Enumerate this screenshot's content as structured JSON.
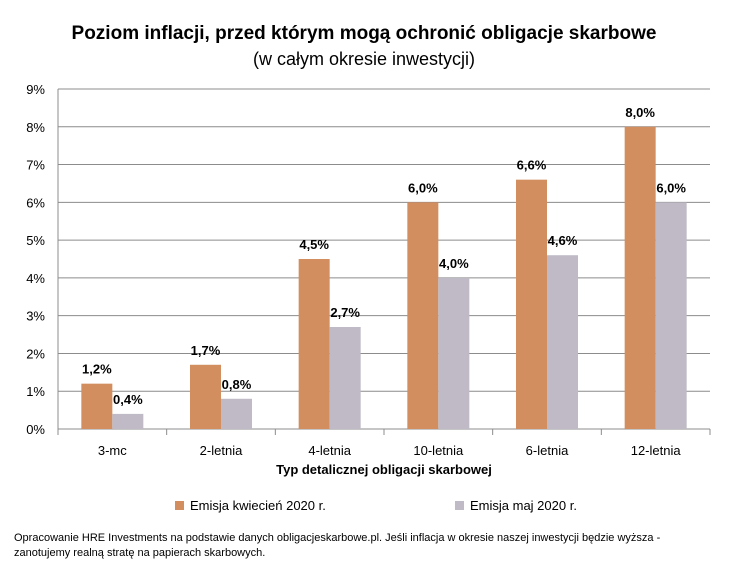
{
  "chart_data": {
    "type": "bar",
    "title": "Poziom inflacji, przed którym mogą ochronić obligacje skarbowe",
    "subtitle": "(w całym okresie inwestycji)",
    "xlabel": "Typ detalicznej obligacji skarbowej",
    "ylabel": "",
    "ylim": [
      0,
      9
    ],
    "yticks": [
      "0%",
      "1%",
      "2%",
      "3%",
      "4%",
      "5%",
      "6%",
      "7%",
      "8%",
      "9%"
    ],
    "grid": true,
    "legend_position": "bottom",
    "categories": [
      "3-mc",
      "2-letnia",
      "4-letnia",
      "10-letnia",
      "6-letnia",
      "12-letnia"
    ],
    "series": [
      {
        "name": "Emisja kwiecień 2020 r.",
        "color": "#D38E5F",
        "values": [
          1.2,
          1.7,
          4.5,
          6.0,
          6.6,
          8.0
        ],
        "labels": [
          "1,2%",
          "1,7%",
          "4,5%",
          "6,0%",
          "6,6%",
          "8,0%"
        ]
      },
      {
        "name": "Emisja maj 2020 r.",
        "color": "#BFBAC5",
        "values": [
          0.4,
          0.8,
          2.7,
          4.0,
          4.6,
          6.0
        ],
        "labels": [
          "0,4%",
          "0,8%",
          "2,7%",
          "4,0%",
          "4,6%",
          "6,0%"
        ]
      }
    ]
  },
  "footnote": {
    "line1": "Opracowanie HRE Investments na podstawie danych obligacjeskarbowe.pl. Jeśli inflacja w okresie naszej inwestycji będzie wyższa -",
    "line2": "zanotujemy realną stratę na papierach skarbowych."
  }
}
